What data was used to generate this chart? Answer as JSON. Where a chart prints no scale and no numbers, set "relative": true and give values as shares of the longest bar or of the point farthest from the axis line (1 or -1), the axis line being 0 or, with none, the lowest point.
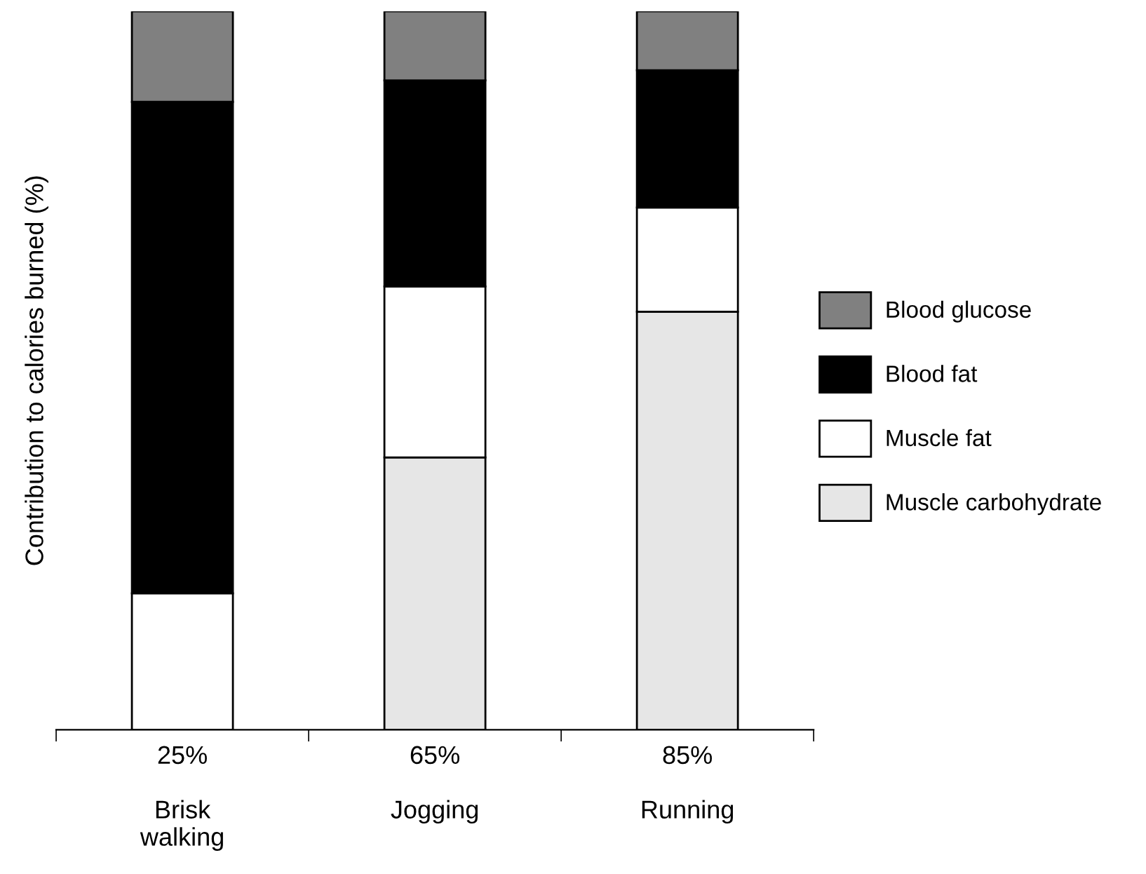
{
  "chart_data": {
    "type": "bar",
    "stacked": true,
    "relative": true,
    "ylabel": "Contribution to calories burned (%)",
    "categories": [
      "25%\n\nBrisk\nwalking",
      "65%\n\nJogging",
      "85%\n\nRunning"
    ],
    "series": [
      {
        "name": "Muscle carbohydrate",
        "color": "#e6e6e6",
        "values": [
          0,
          0.379,
          0.582
        ]
      },
      {
        "name": "Muscle fat",
        "color": "#ffffff",
        "values": [
          0.19,
          0.238,
          0.145
        ]
      },
      {
        "name": "Blood fat",
        "color": "#000000",
        "values": [
          0.684,
          0.287,
          0.191
        ]
      },
      {
        "name": "Blood glucose",
        "color": "#808080",
        "values": [
          0.126,
          0.096,
          0.082
        ]
      }
    ],
    "legend": "right",
    "grid": false
  }
}
